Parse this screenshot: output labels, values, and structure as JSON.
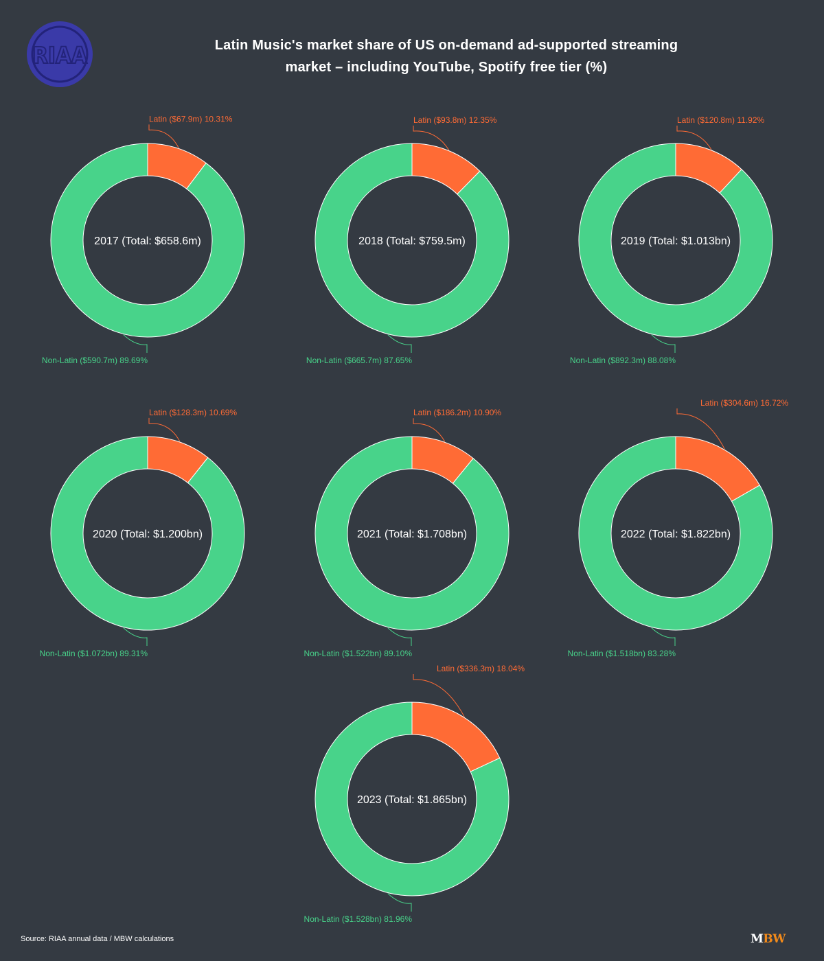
{
  "title": {
    "line1": "Latin Music's market share of US on-demand ad-supported streaming",
    "line2": "market – including YouTube, Spotify free tier (%)"
  },
  "logo": {
    "text": "RIAA",
    "color": "#3a3aa8"
  },
  "source": "Source: RIAA annual data / MBW calculations",
  "brand": {
    "m": "M",
    "bw": "BW"
  },
  "colors": {
    "latin": "#ff6b35",
    "non_latin": "#48d38a",
    "background": "#343a42"
  },
  "chart_data": [
    {
      "type": "pie",
      "center_label": "2017 (Total: $658.6m)",
      "slices": [
        {
          "label": "Latin ($67.9m) 10.31%",
          "value": 10.31
        },
        {
          "label": "Non-Latin ($590.7m) 89.69%",
          "value": 89.69
        }
      ]
    },
    {
      "type": "pie",
      "center_label": "2018 (Total: $759.5m)",
      "slices": [
        {
          "label": "Latin ($93.8m) 12.35%",
          "value": 12.35
        },
        {
          "label": "Non-Latin ($665.7m) 87.65%",
          "value": 87.65
        }
      ]
    },
    {
      "type": "pie",
      "center_label": "2019 (Total: $1.013bn)",
      "slices": [
        {
          "label": "Latin ($120.8m) 11.92%",
          "value": 11.92
        },
        {
          "label": "Non-Latin ($892.3m) 88.08%",
          "value": 88.08
        }
      ]
    },
    {
      "type": "pie",
      "center_label": "2020 (Total: $1.200bn)",
      "slices": [
        {
          "label": "Latin ($128.3m) 10.69%",
          "value": 10.69
        },
        {
          "label": "Non-Latin ($1.072bn) 89.31%",
          "value": 89.31
        }
      ]
    },
    {
      "type": "pie",
      "center_label": "2021 (Total: $1.708bn)",
      "slices": [
        {
          "label": "Latin ($186.2m) 10.90%",
          "value": 10.9
        },
        {
          "label": "Non-Latin ($1.522bn) 89.10%",
          "value": 89.1
        }
      ]
    },
    {
      "type": "pie",
      "center_label": "2022 (Total: $1.822bn)",
      "slices": [
        {
          "label": "Latin ($304.6m) 16.72%",
          "value": 16.72
        },
        {
          "label": "Non-Latin ($1.518bn) 83.28%",
          "value": 83.28
        }
      ]
    },
    {
      "type": "pie",
      "center_label": "2023 (Total: $1.865bn)",
      "slices": [
        {
          "label": "Latin ($336.3m) 18.04%",
          "value": 18.04
        },
        {
          "label": "Non-Latin ($1.528bn) 81.96%",
          "value": 81.96
        }
      ]
    }
  ]
}
